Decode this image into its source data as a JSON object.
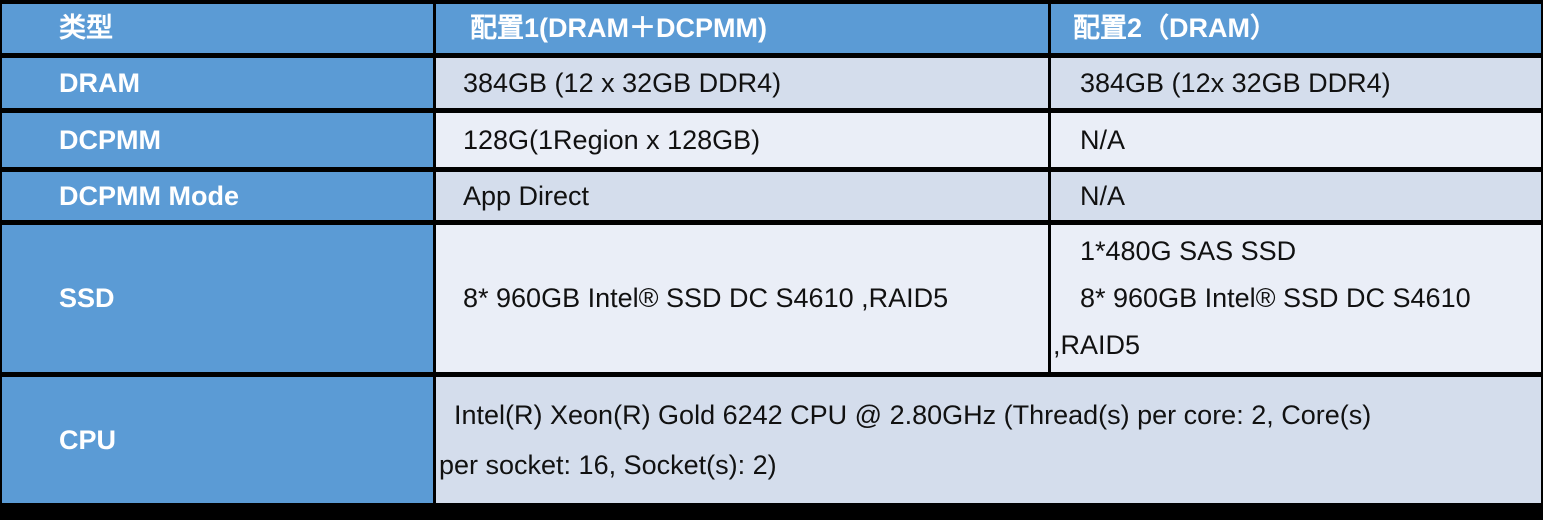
{
  "table": {
    "colors": {
      "header_bg": "#5B9BD5",
      "band_dark": "#D4DDEC",
      "band_light": "#EAEEF7",
      "border": "#000000",
      "header_text": "#FFFFFF",
      "body_text": "#111111"
    },
    "columns": [
      {
        "label": "类型"
      },
      {
        "label": "配置1(DRAM＋DCPMM)"
      },
      {
        "label": "配置2（DRAM）"
      }
    ],
    "rows": [
      {
        "label": "DRAM",
        "config1": "384GB (12 x 32GB DDR4)",
        "config2": "384GB (12x 32GB DDR4)"
      },
      {
        "label": "DCPMM",
        "config1": "128G(1Region x 128GB)",
        "config2": "N/A"
      },
      {
        "label": "DCPMM Mode",
        "config1": "App Direct",
        "config2": "N/A"
      },
      {
        "label": "SSD",
        "config1": "8* 960GB Intel® SSD DC S4610 ,RAID5",
        "config2_lines": [
          "1*480G SAS SSD",
          "8* 960GB Intel® SSD DC S4610",
          ",RAID5"
        ]
      },
      {
        "label": "CPU",
        "value_lines": [
          "Intel(R) Xeon(R) Gold 6242 CPU @ 2.80GHz (Thread(s) per core: 2, Core(s)",
          "per socket: 16, Socket(s): 2)"
        ]
      }
    ]
  }
}
